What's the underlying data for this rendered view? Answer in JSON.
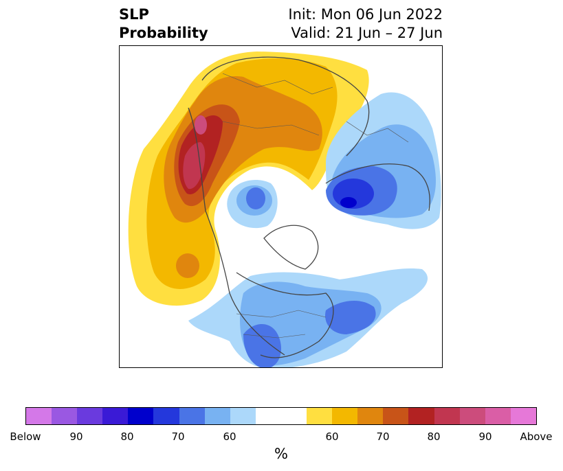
{
  "title": {
    "left_line1": "SLP",
    "left_line2": "Probability",
    "right_line1": "Init: Mon 06 Jun 2022",
    "right_line2": "Valid: 21 Jun – 27 Jun"
  },
  "colorbar": {
    "unit": "%",
    "colors": [
      "#d478e8",
      "#9a58e2",
      "#6a3ade",
      "#3a1ad6",
      "#0000cc",
      "#2438dc",
      "#4a74e6",
      "#78b2f2",
      "#acd8fa",
      "#ffffff",
      "#ffdf40",
      "#f3b800",
      "#e0860e",
      "#c85418",
      "#b22222",
      "#c13650",
      "#cc4c7c",
      "#da5ea6",
      "#e678d8"
    ],
    "tick_labels": [
      "Below",
      "90",
      "80",
      "70",
      "60",
      "60",
      "70",
      "80",
      "90",
      "Above"
    ]
  }
}
